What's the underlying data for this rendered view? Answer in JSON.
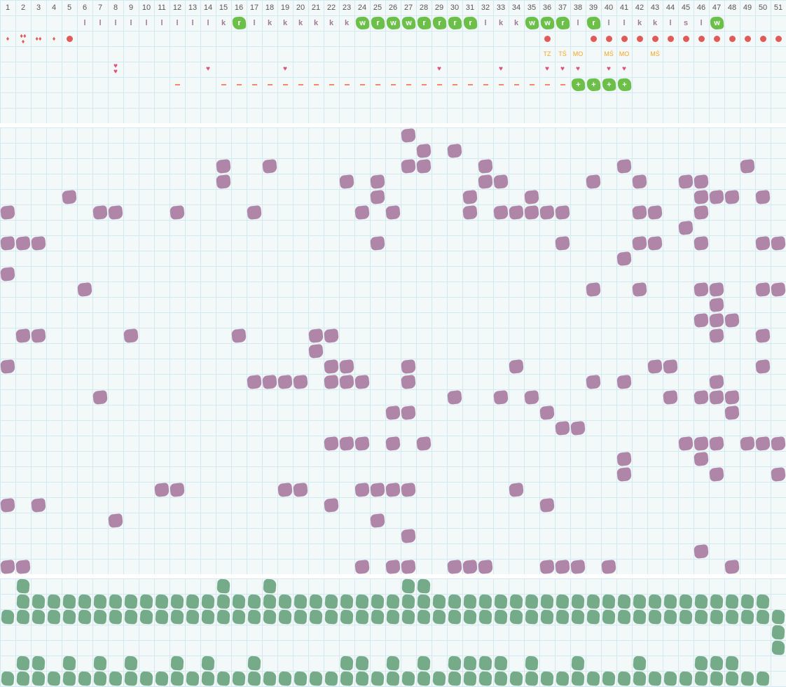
{
  "columns": [
    "1",
    "2",
    "3",
    "4",
    "5",
    "6",
    "7",
    "8",
    "9",
    "10",
    "11",
    "12",
    "13",
    "14",
    "15",
    "16",
    "17",
    "18",
    "19",
    "20",
    "21",
    "22",
    "23",
    "24",
    "25",
    "26",
    "27",
    "28",
    "29",
    "30",
    "31",
    "32",
    "33",
    "34",
    "35",
    "36",
    "37",
    "38",
    "39",
    "40",
    "41",
    "42",
    "43",
    "44",
    "45",
    "46",
    "47",
    "48",
    "49",
    "50",
    "51"
  ],
  "colors": {
    "purple": "#b086a8",
    "green": "#6cc04a",
    "dark_green": "#76ab8a",
    "red": "#e05a57",
    "orange": "#f5a623",
    "pink": "#e0507a"
  },
  "letters": [
    [
      6,
      "l",
      false
    ],
    [
      7,
      "l",
      false
    ],
    [
      8,
      "l",
      false
    ],
    [
      9,
      "l",
      false
    ],
    [
      10,
      "l",
      false
    ],
    [
      11,
      "l",
      false
    ],
    [
      12,
      "l",
      false
    ],
    [
      13,
      "l",
      false
    ],
    [
      14,
      "l",
      false
    ],
    [
      15,
      "k",
      false
    ],
    [
      16,
      "r",
      true
    ],
    [
      17,
      "l",
      false
    ],
    [
      18,
      "k",
      false
    ],
    [
      19,
      "k",
      false
    ],
    [
      20,
      "k",
      false
    ],
    [
      21,
      "k",
      false
    ],
    [
      22,
      "k",
      false
    ],
    [
      23,
      "k",
      false
    ],
    [
      24,
      "w",
      true
    ],
    [
      25,
      "r",
      true
    ],
    [
      26,
      "w",
      true
    ],
    [
      27,
      "w",
      true
    ],
    [
      28,
      "r",
      true
    ],
    [
      29,
      "r",
      true
    ],
    [
      30,
      "r",
      true
    ],
    [
      31,
      "r",
      true
    ],
    [
      32,
      "l",
      false
    ],
    [
      33,
      "k",
      false
    ],
    [
      34,
      "k",
      false
    ],
    [
      35,
      "w",
      true
    ],
    [
      36,
      "w",
      true
    ],
    [
      37,
      "r",
      true
    ],
    [
      38,
      "l",
      false
    ],
    [
      39,
      "r",
      true
    ],
    [
      40,
      "l",
      false
    ],
    [
      41,
      "l",
      false
    ],
    [
      42,
      "k",
      false
    ],
    [
      43,
      "k",
      false
    ],
    [
      44,
      "l",
      false
    ],
    [
      45,
      "s",
      false
    ],
    [
      46,
      "l",
      false
    ],
    [
      47,
      "w",
      true
    ]
  ],
  "drops": [
    [
      1,
      1
    ],
    [
      2,
      3
    ],
    [
      3,
      2
    ],
    [
      4,
      1
    ]
  ],
  "dots": [
    5,
    36,
    39,
    40,
    41,
    42,
    43,
    44,
    45,
    46,
    47,
    48,
    49,
    50,
    51
  ],
  "labels": [
    [
      36,
      "TZ"
    ],
    [
      37,
      "TŚ"
    ],
    [
      38,
      "MO"
    ],
    [
      40,
      "MŚ"
    ],
    [
      41,
      "MO"
    ],
    [
      43,
      "MŚ"
    ]
  ],
  "hearts": [
    [
      8,
      2
    ],
    [
      14,
      1
    ],
    [
      19,
      1
    ],
    [
      29,
      1
    ],
    [
      33,
      1
    ],
    [
      36,
      1
    ],
    [
      37,
      1
    ],
    [
      38,
      1
    ],
    [
      40,
      1
    ],
    [
      41,
      1
    ]
  ],
  "dashes": [
    12,
    15,
    16,
    17,
    18,
    19,
    20,
    21,
    22,
    23,
    24,
    25,
    26,
    27,
    28,
    29,
    30,
    31,
    32,
    33,
    34,
    35,
    36,
    37
  ],
  "plus": {
    "symbol": "+",
    "columns": [
      38,
      39,
      40,
      41
    ]
  },
  "purple_grid": [
    [
      27
    ],
    [
      28,
      30
    ],
    [
      15,
      18,
      27,
      28,
      32,
      41,
      49
    ],
    [
      15,
      23,
      25,
      32,
      33,
      39,
      42,
      45,
      46
    ],
    [
      5,
      25,
      31,
      35,
      46,
      47,
      48,
      50
    ],
    [
      1,
      7,
      8,
      12,
      17,
      24,
      26,
      31,
      33,
      34,
      35,
      36,
      37,
      42,
      43,
      46
    ],
    [
      45
    ],
    [
      1,
      2,
      3,
      25,
      37,
      42,
      43,
      46,
      50,
      51
    ],
    [
      41
    ],
    [
      1
    ],
    [
      6,
      39,
      42,
      46,
      47,
      50,
      51
    ],
    [
      47
    ],
    [
      46,
      47,
      48
    ],
    [
      2,
      3,
      9,
      16,
      21,
      22,
      47,
      50
    ],
    [
      21
    ],
    [
      1,
      22,
      23,
      27,
      34,
      43,
      44,
      50
    ],
    [
      17,
      18,
      19,
      20,
      22,
      23,
      24,
      27,
      39,
      41,
      47
    ],
    [
      7,
      30,
      33,
      35,
      44,
      46,
      47,
      48
    ],
    [
      26,
      27,
      36,
      48
    ],
    [
      37,
      38
    ],
    [
      22,
      23,
      24,
      26,
      28,
      45,
      46,
      47,
      49,
      50,
      51
    ],
    [
      41,
      46
    ],
    [
      41,
      47,
      51
    ],
    [
      11,
      12,
      19,
      20,
      24,
      25,
      26,
      27,
      34
    ],
    [
      1,
      3,
      22,
      36
    ],
    [
      8,
      25
    ],
    [
      27
    ],
    [
      46
    ],
    [
      1,
      2,
      24,
      26,
      27,
      30,
      31,
      32,
      36,
      37,
      38,
      40,
      48
    ]
  ],
  "green_grid": [
    [
      2,
      15,
      18,
      27,
      28
    ],
    [
      "2-50"
    ],
    [
      "1-51"
    ],
    [
      51
    ],
    [
      51
    ],
    [
      2,
      3,
      5,
      7,
      9,
      12,
      14,
      17,
      23,
      24,
      26,
      28,
      30,
      31,
      32,
      33,
      35,
      38,
      42,
      46,
      47,
      48
    ],
    [
      "1-50"
    ]
  ]
}
